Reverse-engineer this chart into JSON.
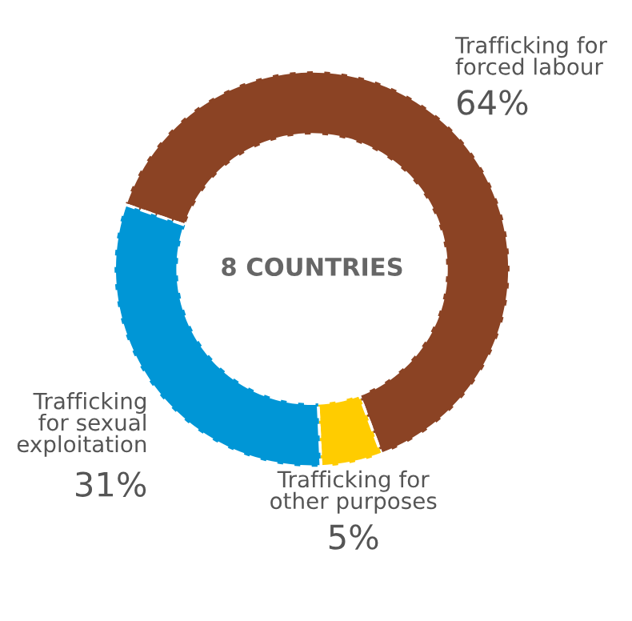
{
  "chart_data": {
    "type": "donut",
    "categories": [
      "Trafficking for\nforced labour",
      "Trafficking for\nother purposes",
      "Trafficking\nfor sexual\nexploitation"
    ],
    "values": [
      64,
      5,
      31
    ],
    "colors": [
      "#8b4324",
      "#ffcc00",
      "#0096d6"
    ],
    "value_labels": [
      "64%",
      "5%",
      "31%"
    ],
    "annotations": [
      "8 COUNTRIES"
    ],
    "legend": false
  }
}
